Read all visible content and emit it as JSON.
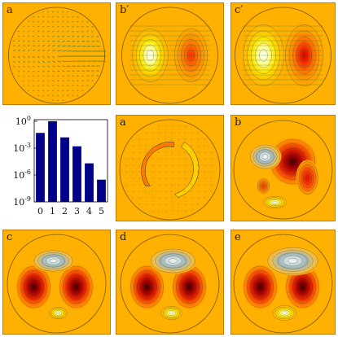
{
  "panels": [
    {
      "label": "a",
      "kind": "vector"
    },
    {
      "label": "b′",
      "kind": "dipole"
    },
    {
      "label": "c′",
      "kind": "dipole-strong"
    },
    {
      "label": "a",
      "kind": "ring"
    },
    {
      "label": "b",
      "kind": "turbulent"
    },
    {
      "label": "c",
      "kind": "trilobe"
    },
    {
      "label": "d",
      "kind": "trilobe"
    },
    {
      "label": "e",
      "kind": "trilobe"
    }
  ],
  "colors": {
    "background": "#ffb000",
    "outline": "#7a5a00",
    "bar": "#00008b",
    "vector": "#3a7a3a"
  },
  "chart_data": {
    "type": "bar",
    "categories": [
      "0",
      "1",
      "2",
      "3",
      "4",
      "5"
    ],
    "values": [
      0.05,
      1.0,
      0.0158,
      0.0016,
      2e-05,
      3e-07
    ],
    "yscale": "log",
    "ylim": [
      1e-09,
      1.5
    ],
    "ytick_labels": [
      "10^0",
      "10^-3",
      "10^-6",
      "10^-9"
    ],
    "xlabel": "",
    "ylabel": "",
    "title": ""
  }
}
